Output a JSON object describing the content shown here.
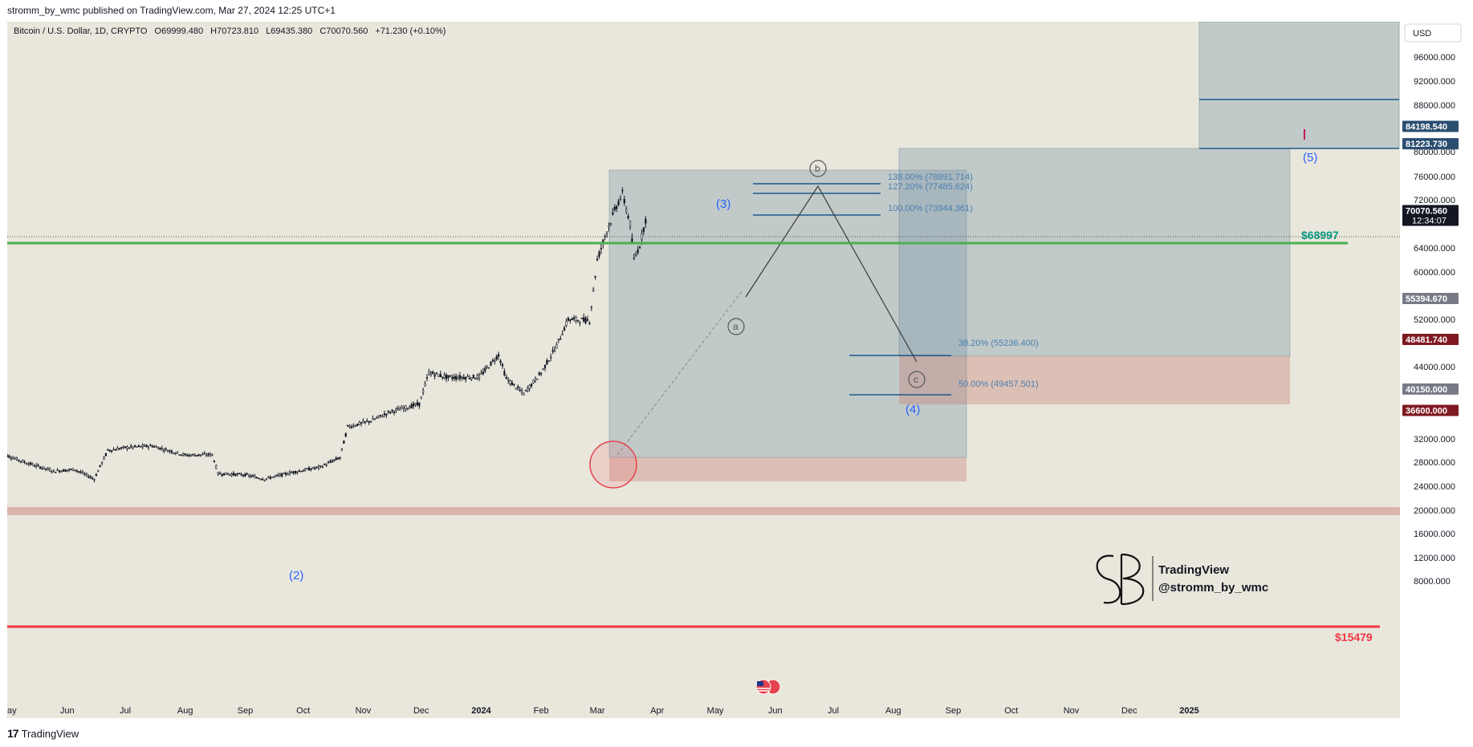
{
  "attribution": "stromm_by_wmc published on TradingView.com, Mar 27, 2024 12:25 UTC+1",
  "footer": {
    "logo": "17",
    "brand": "TradingView"
  },
  "colors": {
    "background": "#e9e6dc",
    "candle": "#131722",
    "green_line": "#4caf50",
    "red_line": "#f23645",
    "wave_label": "#2962ff",
    "box_blue": "rgba(120,150,165,0.35)",
    "box_red": "rgba(200,120,110,0.35)",
    "fib_line": "#1e5a8c"
  },
  "chart_data": {
    "type": "candlestick",
    "title": "Bitcoin / U.S. Dollar, 1D, CRYPTO",
    "ohlc": {
      "open": "O69999.480",
      "high": "H70723.810",
      "low": "L69435.380",
      "close": "C70070.560",
      "change": "+71.230 (+0.10%)"
    },
    "currency": "USD",
    "x_ticks": [
      "ay",
      "Jun",
      "Jul",
      "Aug",
      "Sep",
      "Oct",
      "Nov",
      "Dec",
      "2024",
      "Feb",
      "Mar",
      "Apr",
      "May",
      "Jun",
      "Jul",
      "Aug",
      "Sep",
      "Oct",
      "Nov",
      "Dec",
      "2025"
    ],
    "y_ticks": [
      "96000.000",
      "92000.000",
      "88000.000",
      "80000.000",
      "76000.000",
      "72000.000",
      "64000.000",
      "60000.000",
      "52000.000",
      "44000.000",
      "32000.000",
      "28000.000",
      "24000.000",
      "20000.000",
      "16000.000",
      "12000.000",
      "8000.000"
    ],
    "ylim": [
      4000,
      100000
    ],
    "price_tags": [
      {
        "value": 84198.54,
        "label": "84198.540",
        "color": "#2a4e70"
      },
      {
        "value": 81223.73,
        "label": "81223.730",
        "color": "#2a4e70"
      },
      {
        "value": 70070.56,
        "label": "70070.560",
        "sub": "12:34:07",
        "color": "#131722"
      },
      {
        "value": 55394.67,
        "label": "55394.670",
        "color": "#787b86"
      },
      {
        "value": 48481.74,
        "label": "48481.740",
        "color": "#801922"
      },
      {
        "value": 40150.0,
        "label": "40150.000",
        "color": "#787b86"
      },
      {
        "value": 36600.0,
        "label": "36600.000",
        "color": "#801922"
      }
    ],
    "horizontal_levels": [
      {
        "value": 68997,
        "label": "$68997",
        "color": "#4caf50"
      },
      {
        "value": 15479,
        "label": "$15479",
        "color": "#f23645"
      }
    ],
    "fib_levels": [
      {
        "label": "138.00% (78891.714)",
        "value": 78891.714
      },
      {
        "label": "127.20% (77485.624)",
        "value": 77485.624
      },
      {
        "label": "100.00% (73944.361)",
        "value": 73944.361
      },
      {
        "label": "38.20% (55236.400)",
        "value": 55236.4
      },
      {
        "label": "50.00% (49457.501)",
        "value": 49457.501
      }
    ],
    "wave_labels": [
      "(2)",
      "(3)",
      "(4)",
      "(5)",
      "a",
      "b",
      "c"
    ],
    "watermark": {
      "brand": "TradingView",
      "handle": "@stromm_by_wmc"
    },
    "price_path": [
      [
        "2023-04-28",
        29500
      ],
      [
        "2023-05-10",
        28000
      ],
      [
        "2023-05-25",
        26500
      ],
      [
        "2023-06-05",
        26800
      ],
      [
        "2023-06-15",
        25200
      ],
      [
        "2023-06-22",
        30000
      ],
      [
        "2023-07-01",
        30500
      ],
      [
        "2023-07-15",
        30800
      ],
      [
        "2023-08-01",
        29200
      ],
      [
        "2023-08-15",
        29300
      ],
      [
        "2023-08-18",
        26100
      ],
      [
        "2023-09-01",
        25900
      ],
      [
        "2023-09-11",
        25200
      ],
      [
        "2023-09-25",
        26300
      ],
      [
        "2023-10-10",
        27200
      ],
      [
        "2023-10-20",
        28800
      ],
      [
        "2023-10-24",
        34000
      ],
      [
        "2023-11-05",
        35000
      ],
      [
        "2023-11-15",
        36500
      ],
      [
        "2023-11-30",
        37800
      ],
      [
        "2023-12-05",
        43000
      ],
      [
        "2023-12-15",
        42200
      ],
      [
        "2023-12-31",
        42300
      ],
      [
        "2024-01-10",
        46000
      ],
      [
        "2024-01-14",
        42000
      ],
      [
        "2024-01-23",
        39500
      ],
      [
        "2024-02-01",
        43000
      ],
      [
        "2024-02-09",
        47500
      ],
      [
        "2024-02-15",
        52000
      ],
      [
        "2024-02-26",
        51800
      ],
      [
        "2024-03-01",
        62000
      ],
      [
        "2024-03-05",
        66000
      ],
      [
        "2024-03-11",
        71000
      ],
      [
        "2024-03-14",
        73000
      ],
      [
        "2024-03-18",
        68000
      ],
      [
        "2024-03-20",
        62000
      ],
      [
        "2024-03-23",
        64500
      ],
      [
        "2024-03-27",
        70070
      ]
    ]
  }
}
